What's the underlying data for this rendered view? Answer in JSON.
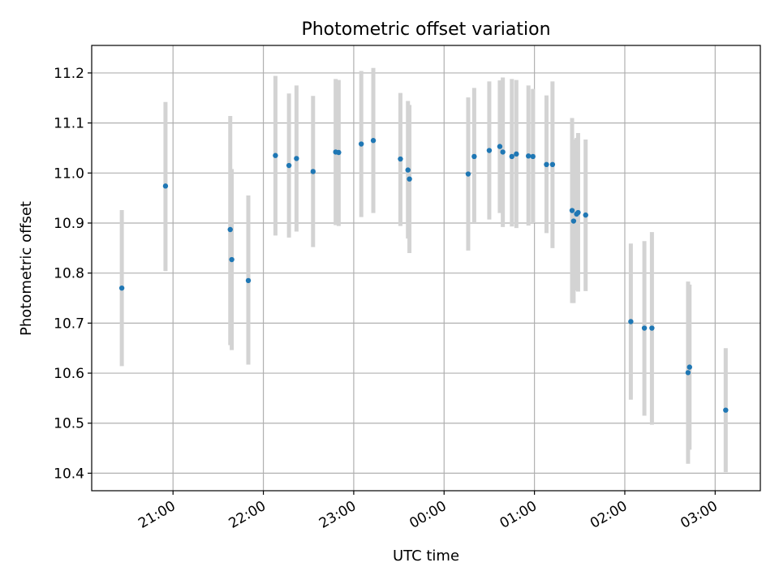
{
  "chart_data": {
    "type": "scatter",
    "title": "Photometric offset variation",
    "xlabel": "UTC time",
    "ylabel": "Photometric offset",
    "grid": true,
    "x_axis_kind": "time",
    "xlim": [
      "20:06",
      "03:30"
    ],
    "ylim": [
      10.365,
      11.255
    ],
    "x_ticks": [
      "21:00",
      "22:00",
      "23:00",
      "00:00",
      "01:00",
      "02:00",
      "03:00"
    ],
    "y_ticks": [
      10.4,
      10.5,
      10.6,
      10.7,
      10.8,
      10.9,
      11.0,
      11.1,
      11.2
    ],
    "colors": {
      "point": "#1f77b4",
      "errorbar": "#d3d3d3",
      "grid": "#b0b0b0"
    },
    "series": [
      {
        "points": [
          {
            "t": "20:26",
            "y": 10.77,
            "lo": 10.614,
            "hi": 10.926
          },
          {
            "t": "20:55",
            "y": 10.974,
            "lo": 10.804,
            "hi": 11.142
          },
          {
            "t": "21:38",
            "y": 10.887,
            "lo": 10.656,
            "hi": 11.114
          },
          {
            "t": "21:39",
            "y": 10.827,
            "lo": 10.646,
            "hi": 11.008
          },
          {
            "t": "21:50",
            "y": 10.785,
            "lo": 10.617,
            "hi": 10.955
          },
          {
            "t": "22:08",
            "y": 11.035,
            "lo": 10.875,
            "hi": 11.194
          },
          {
            "t": "22:17",
            "y": 11.015,
            "lo": 10.871,
            "hi": 11.159
          },
          {
            "t": "22:22",
            "y": 11.029,
            "lo": 10.883,
            "hi": 11.175
          },
          {
            "t": "22:33",
            "y": 11.003,
            "lo": 10.852,
            "hi": 11.154
          },
          {
            "t": "22:48",
            "y": 11.042,
            "lo": 10.896,
            "hi": 11.188
          },
          {
            "t": "22:50",
            "y": 11.041,
            "lo": 10.894,
            "hi": 11.186
          },
          {
            "t": "23:05",
            "y": 11.058,
            "lo": 10.912,
            "hi": 11.204
          },
          {
            "t": "23:13",
            "y": 11.065,
            "lo": 10.92,
            "hi": 11.21
          },
          {
            "t": "23:31",
            "y": 11.028,
            "lo": 10.894,
            "hi": 11.16
          },
          {
            "t": "23:36",
            "y": 11.006,
            "lo": 10.869,
            "hi": 11.144
          },
          {
            "t": "23:37",
            "y": 10.988,
            "lo": 10.84,
            "hi": 11.136
          },
          {
            "t": "00:16",
            "y": 10.998,
            "lo": 10.845,
            "hi": 11.151
          },
          {
            "t": "00:20",
            "y": 11.033,
            "lo": 10.9,
            "hi": 11.17
          },
          {
            "t": "00:30",
            "y": 11.045,
            "lo": 10.907,
            "hi": 11.183
          },
          {
            "t": "00:37",
            "y": 11.053,
            "lo": 10.92,
            "hi": 11.185
          },
          {
            "t": "00:39",
            "y": 11.042,
            "lo": 10.892,
            "hi": 11.191
          },
          {
            "t": "00:45",
            "y": 11.033,
            "lo": 10.893,
            "hi": 11.188
          },
          {
            "t": "00:48",
            "y": 11.038,
            "lo": 10.89,
            "hi": 11.186
          },
          {
            "t": "00:56",
            "y": 11.034,
            "lo": 10.895,
            "hi": 11.175
          },
          {
            "t": "00:59",
            "y": 11.033,
            "lo": 10.9,
            "hi": 11.168
          },
          {
            "t": "01:08",
            "y": 11.017,
            "lo": 10.88,
            "hi": 11.155
          },
          {
            "t": "01:12",
            "y": 11.017,
            "lo": 10.85,
            "hi": 11.183
          },
          {
            "t": "01:25",
            "y": 10.925,
            "lo": 10.74,
            "hi": 11.11
          },
          {
            "t": "01:26",
            "y": 10.904,
            "lo": 10.74,
            "hi": 11.067
          },
          {
            "t": "01:28",
            "y": 10.918,
            "lo": 10.765,
            "hi": 11.07
          },
          {
            "t": "01:29",
            "y": 10.921,
            "lo": 10.763,
            "hi": 11.08
          },
          {
            "t": "01:34",
            "y": 10.916,
            "lo": 10.764,
            "hi": 11.067
          },
          {
            "t": "02:04",
            "y": 10.703,
            "lo": 10.547,
            "hi": 10.859
          },
          {
            "t": "02:13",
            "y": 10.69,
            "lo": 10.515,
            "hi": 10.864
          },
          {
            "t": "02:18",
            "y": 10.69,
            "lo": 10.497,
            "hi": 10.882
          },
          {
            "t": "02:42",
            "y": 10.601,
            "lo": 10.419,
            "hi": 10.783
          },
          {
            "t": "02:43",
            "y": 10.612,
            "lo": 10.447,
            "hi": 10.777
          },
          {
            "t": "03:07",
            "y": 10.526,
            "lo": 10.402,
            "hi": 10.65
          }
        ]
      }
    ]
  }
}
